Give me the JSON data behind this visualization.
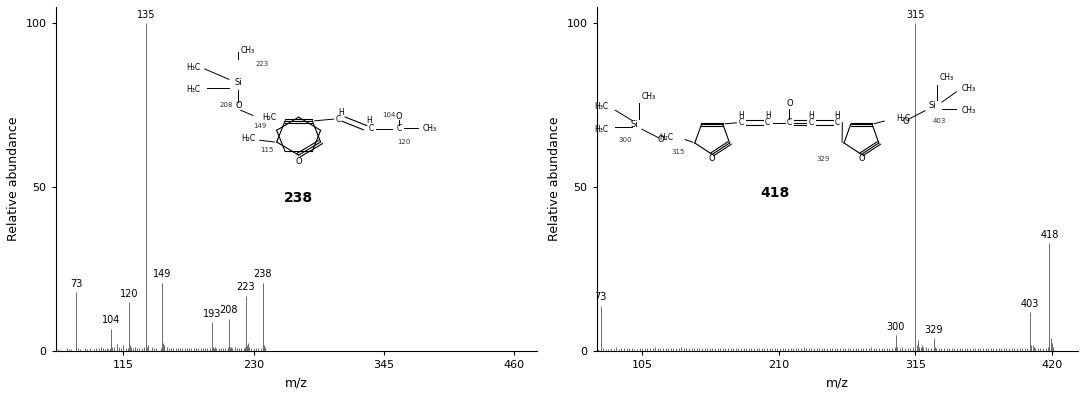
{
  "left": {
    "peaks": [
      [
        55,
        1.0
      ],
      [
        57,
        0.8
      ],
      [
        60,
        0.5
      ],
      [
        65,
        1.0
      ],
      [
        67,
        0.8
      ],
      [
        69,
        0.8
      ],
      [
        73,
        18.0
      ],
      [
        75,
        1.2
      ],
      [
        77,
        0.8
      ],
      [
        81,
        1.0
      ],
      [
        83,
        0.8
      ],
      [
        85,
        1.0
      ],
      [
        89,
        0.8
      ],
      [
        91,
        1.0
      ],
      [
        93,
        1.2
      ],
      [
        95,
        1.5
      ],
      [
        97,
        1.0
      ],
      [
        99,
        0.8
      ],
      [
        100,
        1.0
      ],
      [
        101,
        0.8
      ],
      [
        103,
        1.2
      ],
      [
        104,
        7.0
      ],
      [
        105,
        1.5
      ],
      [
        107,
        1.5
      ],
      [
        109,
        2.2
      ],
      [
        111,
        1.5
      ],
      [
        113,
        1.2
      ],
      [
        115,
        2.0
      ],
      [
        117,
        1.0
      ],
      [
        119,
        1.2
      ],
      [
        120,
        15.0
      ],
      [
        121,
        2.0
      ],
      [
        122,
        1.5
      ],
      [
        123,
        1.2
      ],
      [
        125,
        1.5
      ],
      [
        127,
        1.0
      ],
      [
        129,
        1.0
      ],
      [
        131,
        1.2
      ],
      [
        133,
        1.5
      ],
      [
        135,
        100.0
      ],
      [
        136,
        1.5
      ],
      [
        137,
        2.0
      ],
      [
        140,
        1.5
      ],
      [
        142,
        1.0
      ],
      [
        144,
        1.0
      ],
      [
        148,
        1.2
      ],
      [
        149,
        21.0
      ],
      [
        150,
        2.5
      ],
      [
        151,
        2.0
      ],
      [
        153,
        1.5
      ],
      [
        155,
        1.0
      ],
      [
        157,
        1.0
      ],
      [
        159,
        1.0
      ],
      [
        161,
        1.0
      ],
      [
        163,
        1.0
      ],
      [
        165,
        1.2
      ],
      [
        167,
        1.0
      ],
      [
        169,
        1.0
      ],
      [
        171,
        1.0
      ],
      [
        173,
        1.0
      ],
      [
        175,
        1.0
      ],
      [
        177,
        1.0
      ],
      [
        179,
        1.0
      ],
      [
        181,
        1.0
      ],
      [
        183,
        1.2
      ],
      [
        185,
        1.0
      ],
      [
        187,
        1.0
      ],
      [
        189,
        1.0
      ],
      [
        191,
        1.0
      ],
      [
        193,
        9.0
      ],
      [
        194,
        1.5
      ],
      [
        195,
        1.0
      ],
      [
        196,
        1.5
      ],
      [
        197,
        1.0
      ],
      [
        199,
        1.0
      ],
      [
        201,
        1.0
      ],
      [
        203,
        1.0
      ],
      [
        205,
        1.0
      ],
      [
        207,
        1.5
      ],
      [
        208,
        10.0
      ],
      [
        209,
        1.5
      ],
      [
        210,
        1.5
      ],
      [
        211,
        1.2
      ],
      [
        213,
        1.5
      ],
      [
        215,
        1.0
      ],
      [
        217,
        1.0
      ],
      [
        219,
        1.0
      ],
      [
        221,
        1.2
      ],
      [
        222,
        1.5
      ],
      [
        223,
        17.0
      ],
      [
        224,
        2.0
      ],
      [
        225,
        2.5
      ],
      [
        226,
        1.5
      ],
      [
        228,
        1.0
      ],
      [
        230,
        1.0
      ],
      [
        232,
        1.0
      ],
      [
        234,
        1.0
      ],
      [
        236,
        1.2
      ],
      [
        238,
        21.0
      ],
      [
        239,
        2.0
      ],
      [
        240,
        1.5
      ]
    ],
    "labeled": [
      [
        73,
        "73"
      ],
      [
        104,
        "104"
      ],
      [
        120,
        "120"
      ],
      [
        135,
        "135"
      ],
      [
        149,
        "149"
      ],
      [
        193,
        "193"
      ],
      [
        208,
        "208"
      ],
      [
        223,
        "223"
      ],
      [
        238,
        "238"
      ]
    ],
    "xlim": [
      55,
      480
    ],
    "xticks": [
      115,
      230,
      345,
      460
    ],
    "ylim": [
      0,
      105
    ],
    "yticks": [
      0,
      50,
      100
    ],
    "xlabel": "m/z",
    "ylabel": "Relative abundance",
    "mol_label": "238"
  },
  "right": {
    "peaks": [
      [
        71,
        0.8
      ],
      [
        73,
        14.0
      ],
      [
        75,
        1.2
      ],
      [
        77,
        0.8
      ],
      [
        79,
        0.8
      ],
      [
        81,
        1.0
      ],
      [
        83,
        0.8
      ],
      [
        85,
        1.5
      ],
      [
        87,
        0.8
      ],
      [
        89,
        1.0
      ],
      [
        91,
        1.0
      ],
      [
        93,
        1.2
      ],
      [
        95,
        1.0
      ],
      [
        97,
        1.0
      ],
      [
        99,
        0.8
      ],
      [
        101,
        0.8
      ],
      [
        103,
        1.0
      ],
      [
        105,
        1.2
      ],
      [
        107,
        1.0
      ],
      [
        109,
        1.2
      ],
      [
        111,
        1.0
      ],
      [
        113,
        1.0
      ],
      [
        115,
        1.5
      ],
      [
        117,
        1.0
      ],
      [
        119,
        1.2
      ],
      [
        121,
        1.0
      ],
      [
        123,
        1.0
      ],
      [
        125,
        1.0
      ],
      [
        127,
        1.0
      ],
      [
        129,
        1.2
      ],
      [
        131,
        1.0
      ],
      [
        133,
        1.0
      ],
      [
        135,
        1.5
      ],
      [
        137,
        1.0
      ],
      [
        139,
        1.0
      ],
      [
        141,
        1.0
      ],
      [
        143,
        1.0
      ],
      [
        145,
        1.0
      ],
      [
        147,
        1.0
      ],
      [
        149,
        1.2
      ],
      [
        151,
        1.0
      ],
      [
        153,
        1.0
      ],
      [
        155,
        1.0
      ],
      [
        157,
        1.0
      ],
      [
        159,
        1.0
      ],
      [
        161,
        1.2
      ],
      [
        163,
        1.0
      ],
      [
        165,
        1.0
      ],
      [
        167,
        1.0
      ],
      [
        169,
        1.0
      ],
      [
        171,
        1.2
      ],
      [
        173,
        1.0
      ],
      [
        175,
        1.0
      ],
      [
        177,
        1.0
      ],
      [
        179,
        1.2
      ],
      [
        181,
        1.0
      ],
      [
        183,
        1.0
      ],
      [
        185,
        1.0
      ],
      [
        187,
        1.0
      ],
      [
        189,
        1.2
      ],
      [
        191,
        1.0
      ],
      [
        193,
        1.0
      ],
      [
        195,
        1.2
      ],
      [
        197,
        1.0
      ],
      [
        199,
        1.0
      ],
      [
        201,
        1.2
      ],
      [
        203,
        1.0
      ],
      [
        205,
        1.0
      ],
      [
        207,
        1.0
      ],
      [
        209,
        1.2
      ],
      [
        211,
        1.0
      ],
      [
        213,
        1.0
      ],
      [
        215,
        1.2
      ],
      [
        217,
        1.0
      ],
      [
        219,
        1.0
      ],
      [
        221,
        1.0
      ],
      [
        223,
        1.2
      ],
      [
        225,
        1.0
      ],
      [
        227,
        1.0
      ],
      [
        229,
        1.5
      ],
      [
        231,
        1.0
      ],
      [
        233,
        1.0
      ],
      [
        235,
        1.2
      ],
      [
        237,
        1.0
      ],
      [
        239,
        1.0
      ],
      [
        241,
        1.0
      ],
      [
        243,
        1.0
      ],
      [
        245,
        1.0
      ],
      [
        247,
        1.2
      ],
      [
        249,
        1.0
      ],
      [
        251,
        1.0
      ],
      [
        253,
        1.2
      ],
      [
        255,
        1.0
      ],
      [
        257,
        1.0
      ],
      [
        259,
        1.0
      ],
      [
        261,
        1.2
      ],
      [
        263,
        1.0
      ],
      [
        265,
        1.0
      ],
      [
        267,
        1.0
      ],
      [
        269,
        1.2
      ],
      [
        271,
        1.0
      ],
      [
        273,
        1.0
      ],
      [
        275,
        1.0
      ],
      [
        277,
        1.2
      ],
      [
        279,
        1.0
      ],
      [
        281,
        1.5
      ],
      [
        283,
        1.0
      ],
      [
        285,
        1.0
      ],
      [
        287,
        1.0
      ],
      [
        289,
        1.2
      ],
      [
        291,
        1.0
      ],
      [
        293,
        1.0
      ],
      [
        295,
        1.2
      ],
      [
        297,
        1.0
      ],
      [
        299,
        1.5
      ],
      [
        300,
        5.0
      ],
      [
        301,
        1.5
      ],
      [
        303,
        1.2
      ],
      [
        305,
        1.5
      ],
      [
        307,
        1.2
      ],
      [
        309,
        1.0
      ],
      [
        311,
        1.0
      ],
      [
        313,
        1.5
      ],
      [
        315,
        100.0
      ],
      [
        316,
        2.0
      ],
      [
        317,
        3.5
      ],
      [
        318,
        1.5
      ],
      [
        319,
        1.5
      ],
      [
        320,
        2.0
      ],
      [
        321,
        1.5
      ],
      [
        323,
        1.5
      ],
      [
        325,
        1.2
      ],
      [
        327,
        1.0
      ],
      [
        329,
        4.0
      ],
      [
        330,
        1.5
      ],
      [
        331,
        1.2
      ],
      [
        333,
        1.0
      ],
      [
        335,
        1.0
      ],
      [
        337,
        1.0
      ],
      [
        339,
        1.0
      ],
      [
        341,
        1.0
      ],
      [
        343,
        1.0
      ],
      [
        345,
        1.0
      ],
      [
        347,
        1.0
      ],
      [
        349,
        1.0
      ],
      [
        351,
        1.0
      ],
      [
        353,
        1.0
      ],
      [
        355,
        1.0
      ],
      [
        357,
        1.0
      ],
      [
        359,
        1.0
      ],
      [
        361,
        1.0
      ],
      [
        363,
        1.0
      ],
      [
        365,
        1.0
      ],
      [
        367,
        1.0
      ],
      [
        369,
        1.0
      ],
      [
        371,
        1.0
      ],
      [
        373,
        1.0
      ],
      [
        375,
        1.0
      ],
      [
        377,
        1.0
      ],
      [
        379,
        1.0
      ],
      [
        381,
        1.0
      ],
      [
        383,
        1.0
      ],
      [
        385,
        1.0
      ],
      [
        387,
        1.0
      ],
      [
        389,
        1.0
      ],
      [
        391,
        1.0
      ],
      [
        393,
        1.0
      ],
      [
        395,
        1.0
      ],
      [
        397,
        1.0
      ],
      [
        399,
        1.0
      ],
      [
        401,
        1.2
      ],
      [
        403,
        12.0
      ],
      [
        404,
        2.0
      ],
      [
        405,
        2.0
      ],
      [
        406,
        1.5
      ],
      [
        407,
        1.2
      ],
      [
        409,
        1.0
      ],
      [
        411,
        1.0
      ],
      [
        413,
        1.0
      ],
      [
        415,
        1.0
      ],
      [
        417,
        1.5
      ],
      [
        418,
        33.0
      ],
      [
        419,
        4.0
      ],
      [
        420,
        2.5
      ],
      [
        421,
        1.5
      ]
    ],
    "labeled": [
      [
        73,
        "73"
      ],
      [
        300,
        "300"
      ],
      [
        315,
        "315"
      ],
      [
        329,
        "329"
      ],
      [
        403,
        "403"
      ],
      [
        418,
        "418"
      ]
    ],
    "xlim": [
      70,
      440
    ],
    "xticks": [
      105,
      210,
      315,
      420
    ],
    "ylim": [
      0,
      105
    ],
    "yticks": [
      0,
      50,
      100
    ],
    "xlabel": "m/z",
    "ylabel": "Relative abundance",
    "mol_label": "418"
  },
  "peak_color": "#636363",
  "fig_width": 10.85,
  "fig_height": 3.96,
  "dpi": 100,
  "font_size_axis_label": 9,
  "font_size_tick": 8,
  "font_size_peak_label": 7.0,
  "font_size_mol_label": 9,
  "font_size_struct": 5.5
}
